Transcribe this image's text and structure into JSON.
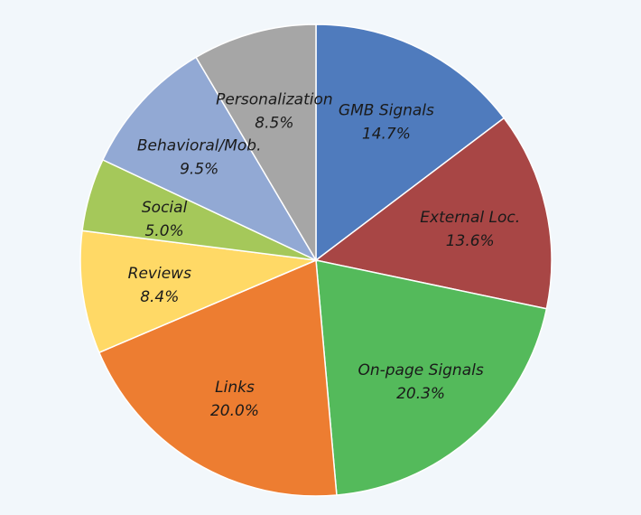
{
  "chart_data": {
    "type": "pie",
    "title": "",
    "start_angle_deg": 0,
    "direction": "clockwise",
    "slices": [
      {
        "label": "GMB Signals",
        "value": 14.7,
        "value_label": "14.7%",
        "color": "#4f7bbd"
      },
      {
        "label": "External Loc.",
        "value": 13.6,
        "value_label": "13.6%",
        "color": "#a84645"
      },
      {
        "label": "On-page Signals",
        "value": 20.3,
        "value_label": "20.3%",
        "color": "#54ba5b"
      },
      {
        "label": "Links",
        "value": 20.0,
        "value_label": "20.0%",
        "color": "#ed7d31"
      },
      {
        "label": "Reviews",
        "value": 8.4,
        "value_label": "8.4%",
        "color": "#ffd966"
      },
      {
        "label": "Social",
        "value": 5.0,
        "value_label": "5.0%",
        "color": "#a5c85a"
      },
      {
        "label": "Behavioral/Mob.",
        "value": 9.5,
        "value_label": "9.5%",
        "color": "#92a9d4"
      },
      {
        "label": "Personalization",
        "value": 8.5,
        "value_label": "8.5%",
        "color": "#a6a6a6"
      }
    ]
  }
}
